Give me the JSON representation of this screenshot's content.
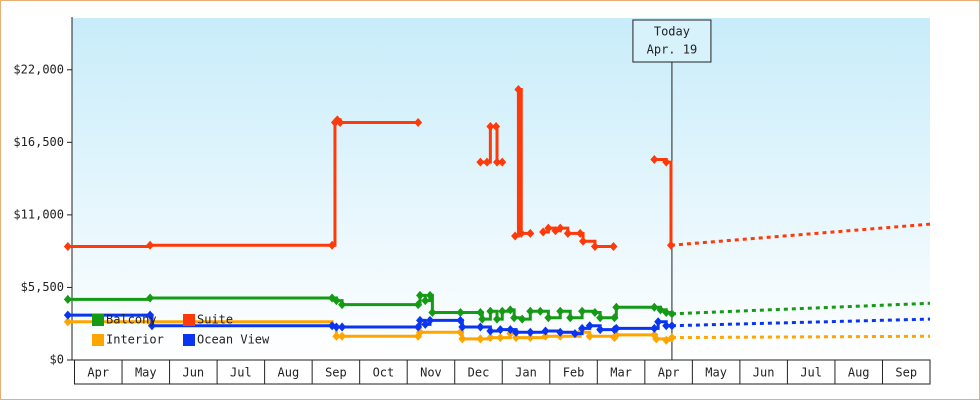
{
  "chart_data": {
    "type": "step-line",
    "xlim": [
      -0.2,
      18
    ],
    "ylim": [
      0,
      26000
    ],
    "xticks": [
      {
        "value": 0.5,
        "label": "Apr"
      },
      {
        "value": 1.5,
        "label": "May"
      },
      {
        "value": 2.5,
        "label": "Jun"
      },
      {
        "value": 3.5,
        "label": "Jul"
      },
      {
        "value": 4.5,
        "label": "Aug"
      },
      {
        "value": 5.5,
        "label": "Sep"
      },
      {
        "value": 6.5,
        "label": "Oct"
      },
      {
        "value": 7.5,
        "label": "Nov"
      },
      {
        "value": 8.5,
        "label": "Dec"
      },
      {
        "value": 9.5,
        "label": "Jan"
      },
      {
        "value": 10.5,
        "label": "Feb"
      },
      {
        "value": 11.5,
        "label": "Mar"
      },
      {
        "value": 12.5,
        "label": "Apr"
      },
      {
        "value": 13.5,
        "label": "May"
      },
      {
        "value": 14.5,
        "label": "Jun"
      },
      {
        "value": 15.5,
        "label": "Jul"
      },
      {
        "value": 16.5,
        "label": "Aug"
      },
      {
        "value": 17.5,
        "label": "Sep"
      }
    ],
    "yticks": [
      {
        "value": 0,
        "label": "$0"
      },
      {
        "value": 5500,
        "label": "$5,500"
      },
      {
        "value": 11000,
        "label": "$11,000"
      },
      {
        "value": 16500,
        "label": "$16,500"
      },
      {
        "value": 22000,
        "label": "$22,000"
      }
    ],
    "legend": "lower left",
    "today": {
      "x": 12.57,
      "label": "Today",
      "date": "Apr. 19"
    },
    "series": [
      {
        "name": "Balcony",
        "color": "#159a15",
        "x": [
          -0.14,
          1.59,
          5.42,
          5.51,
          5.63,
          7.23,
          7.27,
          7.38,
          7.48,
          7.53,
          8.12,
          8.54,
          8.58,
          8.75,
          8.89,
          9.0,
          9.17,
          9.25,
          9.42,
          9.59,
          9.8,
          9.97,
          10.22,
          10.43,
          10.68,
          10.95,
          11.06,
          11.36,
          11.4,
          12.2,
          12.33,
          12.45,
          12.57
        ],
        "values": [
          4600,
          4700,
          4700,
          4500,
          4200,
          4200,
          4900,
          4500,
          4900,
          3600,
          3600,
          3600,
          3100,
          3700,
          3100,
          3700,
          3800,
          3200,
          3100,
          3700,
          3700,
          3200,
          3700,
          3200,
          3700,
          3600,
          3200,
          3200,
          4000,
          4000,
          3800,
          3600,
          3500
        ],
        "forecast": {
          "x": [
            12.57,
            18
          ],
          "values": [
            3500,
            4300
          ]
        }
      },
      {
        "name": "Suite",
        "color": "#ff3a0a",
        "x": [
          -0.14,
          1.59,
          5.42,
          5.48,
          5.53,
          5.59,
          7.23,
          8.0,
          8.54,
          8.68,
          8.75,
          8.87,
          8.89,
          9.0,
          9.1,
          9.27,
          9.34,
          9.4,
          9.59,
          9.8,
          9.86,
          9.97,
          10.12,
          10.22,
          10.38,
          10.64,
          10.7,
          10.95,
          11.34,
          11.8,
          12.2,
          12.45,
          12.55
        ],
        "values": [
          8600,
          8700,
          8700,
          18000,
          18200,
          18000,
          18000,
          null,
          15000,
          15000,
          17700,
          17700,
          15000,
          15000,
          null,
          9400,
          20500,
          9600,
          9600,
          null,
          9700,
          10000,
          9800,
          10000,
          9600,
          9600,
          9000,
          8600,
          8600,
          null,
          15200,
          15000,
          8700
        ],
        "forecast": {
          "x": [
            12.55,
            18
          ],
          "values": [
            8700,
            10300
          ]
        }
      },
      {
        "name": "Interior",
        "color": "#ffa500",
        "x": [
          -0.14,
          1.59,
          5.42,
          5.51,
          5.63,
          7.23,
          7.27,
          8.12,
          8.16,
          8.54,
          8.75,
          8.96,
          9.17,
          9.29,
          9.59,
          9.91,
          10.22,
          10.64,
          10.84,
          11.36,
          11.4,
          12.2,
          12.24,
          12.45,
          12.57
        ],
        "values": [
          2900,
          2900,
          2600,
          1800,
          1800,
          1800,
          2100,
          2100,
          1600,
          1600,
          1700,
          1700,
          2000,
          1700,
          1700,
          1800,
          1800,
          2100,
          1800,
          1700,
          1900,
          1900,
          1600,
          1500,
          1700
        ],
        "forecast": {
          "x": [
            12.57,
            18
          ],
          "values": [
            1700,
            1800
          ]
        }
      },
      {
        "name": "Ocean View",
        "color": "#0a35f0",
        "x": [
          -0.14,
          1.59,
          1.63,
          5.42,
          5.51,
          5.63,
          7.23,
          7.27,
          7.38,
          7.48,
          8.12,
          8.16,
          8.54,
          8.75,
          8.96,
          9.17,
          9.29,
          9.59,
          9.91,
          10.22,
          10.53,
          10.68,
          10.84,
          11.06,
          11.36,
          11.4,
          12.2,
          12.28,
          12.45,
          12.57
        ],
        "values": [
          3400,
          3400,
          2600,
          2600,
          2500,
          2500,
          2500,
          3000,
          2700,
          3000,
          3000,
          2500,
          2500,
          2200,
          2300,
          2300,
          2100,
          2100,
          2200,
          2100,
          2000,
          2400,
          2600,
          2300,
          2300,
          2400,
          2400,
          2900,
          2600,
          2600
        ],
        "forecast": {
          "x": [
            12.57,
            18
          ],
          "values": [
            2600,
            3100
          ]
        }
      }
    ]
  }
}
